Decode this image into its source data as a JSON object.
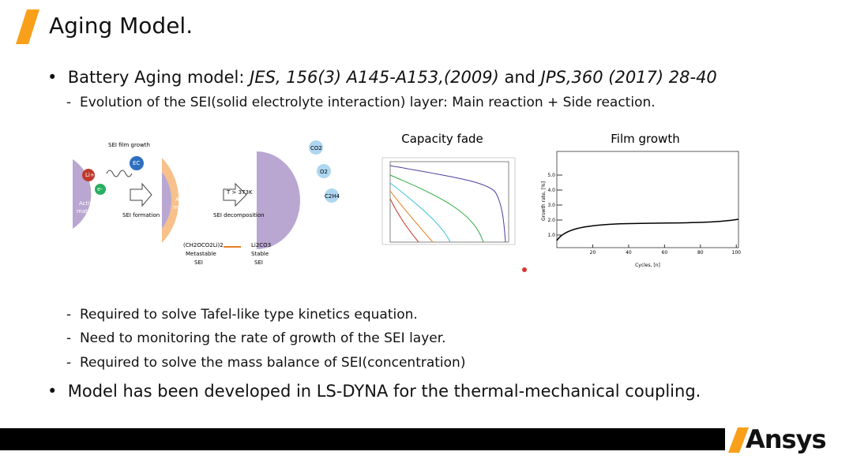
{
  "header": {
    "title": "Aging Model."
  },
  "bullets": [
    {
      "parts": [
        "Battery Aging model: ",
        "JES, 156(3) A145-A153,(2009)",
        " and ",
        "JPS,360 (2017) 28-40"
      ],
      "sub": [
        "Evolution of the SEI(solid electrolyte interaction) layer: Main reaction + Side reaction."
      ]
    },
    {
      "sub": [
        "Required to solve Tafel-like type kinetics equation.",
        "Need to monitoring the rate of growth of the SEI layer.",
        "Required to solve the mass balance of SEI(concentration)"
      ]
    },
    {
      "parts": [
        "Model has been developed in LS-DYNA for the thermal-mechanical coupling."
      ]
    }
  ],
  "diagram": {
    "labels": {
      "film_growth": "SEI film growth",
      "li": "Li+",
      "ec": "EC",
      "e": "e-",
      "active1": "Active",
      "active2": "material",
      "formation": "SEI formation",
      "temp": "T > 373K",
      "decomposition": "SEI decomposition",
      "co2": "CO2",
      "o2": "O2",
      "c2h4": "C2H4",
      "meta1": "(CH2OCO2Li)2",
      "meta2": "Metastable",
      "meta3": "SEI",
      "stable1": "Li2CO3",
      "stable2": "Stable",
      "stable3": "SEI"
    }
  },
  "figures": [
    {
      "title": "Capacity fade"
    },
    {
      "title": "Film growth",
      "xlabel": "Cycles, [n]",
      "ylabel": "Growth rate, [%]",
      "xticks": [
        "20",
        "40",
        "60",
        "80",
        "100"
      ],
      "yticks": [
        "1.0",
        "2.0",
        "3.0",
        "4.0",
        "5.0"
      ]
    }
  ],
  "footer": {
    "logo": "Ansys"
  }
}
